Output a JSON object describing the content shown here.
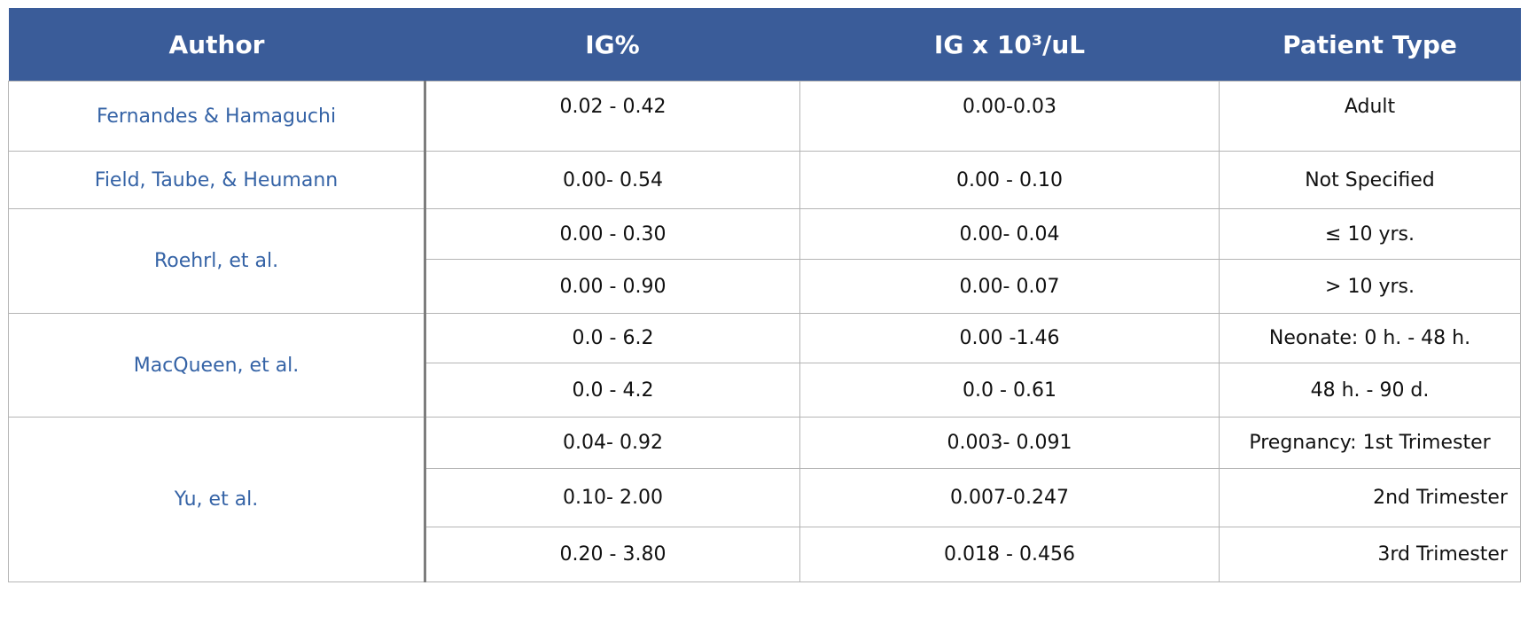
{
  "table": {
    "columns": [
      "Author",
      "IG%",
      "IG x 10³/uL",
      "Patient Type"
    ],
    "rows": [
      {
        "author": "Fernandes & Hamaguchi",
        "entries": [
          [
            "0.02 - 0.42",
            "0.00-0.03",
            "Adult"
          ]
        ]
      },
      {
        "author": "Field, Taube, & Heumann",
        "entries": [
          [
            "0.00- 0.54",
            "0.00 - 0.10",
            "Not Specified"
          ]
        ]
      },
      {
        "author": "Roehrl, et al.",
        "entries": [
          [
            "0.00 - 0.30",
            "0.00- 0.04",
            "≤ 10 yrs."
          ],
          [
            "0.00 - 0.90",
            "0.00- 0.07",
            "> 10 yrs."
          ]
        ]
      },
      {
        "author": "MacQueen, et al.",
        "entries": [
          [
            "0.0 - 6.2",
            "0.00 -1.46",
            "Neonate: 0 h. - 48 h."
          ],
          [
            "0.0 - 4.2",
            "0.0 - 0.61",
            "48 h. - 90 d."
          ]
        ]
      },
      {
        "author": "Yu, et al.",
        "entries": [
          [
            "0.04- 0.92",
            "0.003- 0.091",
            "Pregnancy: 1st Trimester"
          ],
          [
            "0.10- 2.00",
            "0.007-0.247",
            "2nd Trimester"
          ],
          [
            "0.20 - 3.80",
            "0.018 - 0.456",
            "3rd Trimester"
          ]
        ]
      }
    ]
  }
}
